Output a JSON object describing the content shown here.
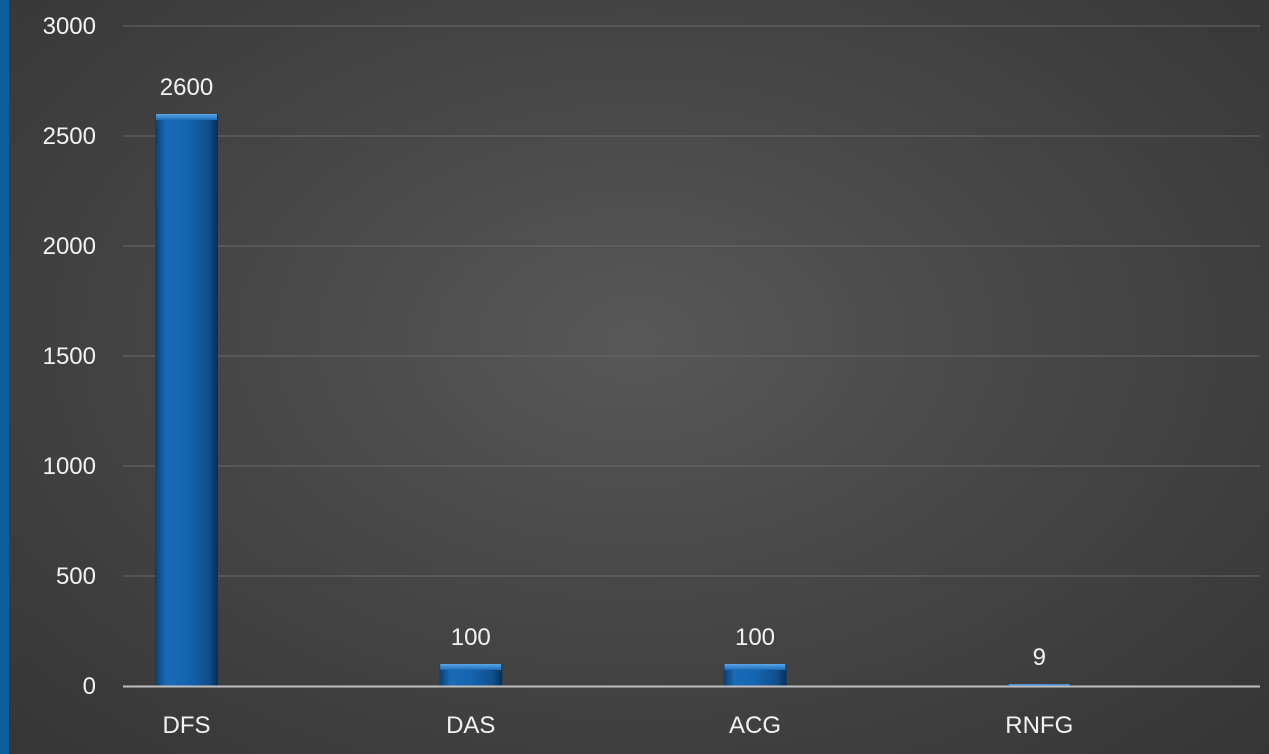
{
  "chart_data": {
    "type": "bar",
    "categories": [
      "DFS",
      "DAS",
      "ACG",
      "RNFG"
    ],
    "values": [
      2600,
      100,
      100,
      9
    ],
    "data_labels": [
      "2600",
      "100",
      "100",
      "9"
    ],
    "title": "",
    "xlabel": "",
    "ylabel": "",
    "ylim": [
      0,
      3000
    ],
    "yticks": [
      "0",
      "500",
      "1000",
      "1500",
      "2000",
      "2500",
      "3000"
    ],
    "grid": true,
    "legend": "none",
    "colors": {
      "bar": "#1565b0",
      "bar_dark": "#0b3e70",
      "bar_light": "#3b8fd6",
      "grid": "#6a6a6a",
      "axis": "#bfbfbf",
      "text": "#f2f2f2",
      "stripe": "#0f5c9e"
    }
  }
}
